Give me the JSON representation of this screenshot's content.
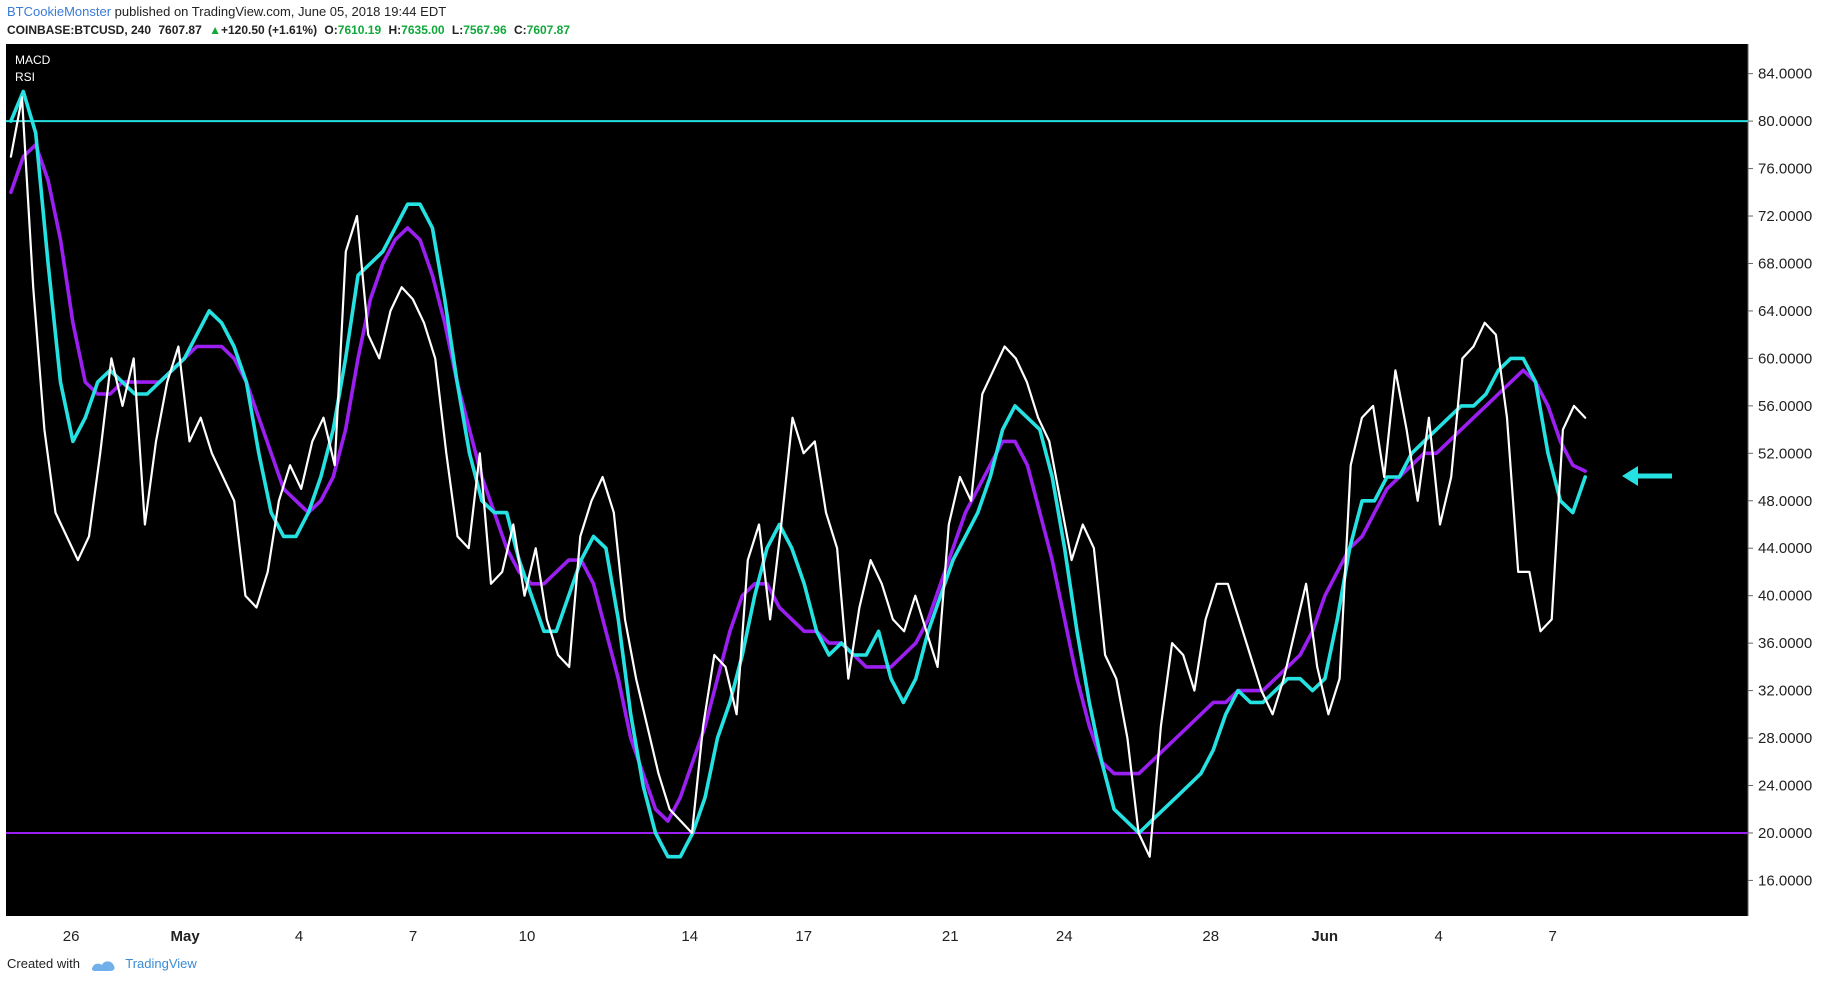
{
  "header": {
    "author": "BTCookieMonster",
    "published": "published on TradingView.com, June 05, 2018 19:44 EDT",
    "symbol": "COINBASE:BTCUSD, 240",
    "price": "7607.87",
    "change": "+120.50 (+1.61%)",
    "o_label": "O:",
    "o_value": "7610.19",
    "h_label": "H:",
    "h_value": "7635.00",
    "l_label": "L:",
    "l_value": "7567.96",
    "c_label": "C:",
    "c_value": "7607.87"
  },
  "footer": {
    "created_with": "Created with",
    "brand": "TradingView"
  },
  "colors": {
    "background": "#000000",
    "rsi": "#ffffff",
    "macd_fast": "#26e1e1",
    "macd_slow": "#9a1ff0",
    "upper_band": "#26e1e1",
    "lower_band": "#9a1ff0",
    "arrow": "#26e1e1"
  },
  "chart_data": {
    "type": "line",
    "legend": [
      "MACD",
      "RSI"
    ],
    "ylim": [
      13.0,
      86.5
    ],
    "y_ticks": [
      "84.0000",
      "80.0000",
      "76.0000",
      "72.0000",
      "68.0000",
      "64.0000",
      "60.0000",
      "56.0000",
      "52.0000",
      "48.0000",
      "44.0000",
      "40.0000",
      "36.0000",
      "32.0000",
      "28.0000",
      "24.0000",
      "20.0000",
      "16.0000"
    ],
    "x_ticks": [
      "26",
      "May",
      "4",
      "7",
      "10",
      "14",
      "17",
      "21",
      "24",
      "28",
      "Jun",
      "4",
      "7"
    ],
    "x_tick_pos": [
      2.5,
      9.5,
      16.5,
      23.5,
      30.5,
      40.5,
      47.5,
      56.5,
      63.5,
      72.5,
      79.5,
      86.5,
      93.5
    ],
    "xlim": [
      -1.5,
      105.5
    ],
    "hlines": [
      80,
      20
    ],
    "series": [
      {
        "name": "",
        "role": "rsi",
        "values": [
          77,
          82,
          66,
          54,
          47,
          45,
          43,
          45,
          52,
          60,
          56,
          60,
          46,
          53,
          58,
          61,
          53,
          55,
          52,
          50,
          48,
          40,
          39,
          42,
          48,
          51,
          49,
          53,
          55,
          51,
          69,
          72,
          62,
          60,
          64,
          66,
          65,
          63,
          60,
          52,
          45,
          44,
          52,
          41,
          42,
          46,
          40,
          44,
          38,
          35,
          34,
          45,
          48,
          50,
          47,
          38,
          33,
          29,
          25,
          22,
          21,
          20,
          29,
          35,
          34,
          30,
          43,
          46,
          38,
          46,
          55,
          52,
          53,
          47,
          44,
          33,
          39,
          43,
          41,
          38,
          37,
          40,
          37,
          34,
          46,
          50,
          48,
          57,
          59,
          61,
          60,
          58,
          55,
          53,
          48,
          43,
          46,
          44,
          35,
          33,
          28,
          20,
          18,
          29,
          36,
          35,
          32,
          38,
          41,
          41,
          38,
          35,
          32,
          30,
          33,
          37,
          41,
          34,
          30,
          33,
          51,
          55,
          56,
          50,
          59,
          54,
          48,
          55,
          46,
          50,
          60,
          61,
          63,
          62,
          55,
          42,
          42,
          37,
          38,
          54,
          56,
          55
        ]
      },
      {
        "name": "",
        "role": "macd_fast",
        "values": [
          80,
          82.5,
          79,
          68,
          58,
          53,
          55,
          58,
          59,
          58,
          57,
          57,
          58,
          59,
          60,
          62,
          64,
          63,
          61,
          58,
          52,
          47,
          45,
          45,
          47,
          50,
          54,
          60,
          67,
          68,
          69,
          71,
          73,
          73,
          71,
          65,
          58,
          52,
          48,
          47,
          47,
          43,
          40,
          37,
          37,
          40,
          43,
          45,
          44,
          38,
          30,
          24,
          20,
          18,
          18,
          20,
          23,
          28,
          31,
          35,
          40,
          44,
          46,
          44,
          41,
          37,
          35,
          36,
          35,
          35,
          37,
          33,
          31,
          33,
          37,
          40,
          43,
          45,
          47,
          50,
          54,
          56,
          55,
          54,
          50,
          44,
          37,
          31,
          26,
          22,
          21,
          20,
          21,
          22,
          23,
          24,
          25,
          27,
          30,
          32,
          31,
          31,
          32,
          33,
          33,
          32,
          33,
          38,
          44,
          48,
          48,
          50,
          50,
          52,
          53,
          54,
          55,
          56,
          56,
          57,
          59,
          60,
          60,
          58,
          52,
          48,
          47,
          50
        ]
      },
      {
        "name": "",
        "role": "macd_slow",
        "values": [
          74,
          77,
          78,
          75,
          70,
          63,
          58,
          57,
          57,
          58,
          58,
          58,
          58,
          59,
          60,
          61,
          61,
          61,
          60,
          58,
          55,
          52,
          49,
          48,
          47,
          48,
          50,
          54,
          60,
          65,
          68,
          70,
          71,
          70,
          67,
          63,
          58,
          54,
          50,
          47,
          44,
          42,
          41,
          41,
          42,
          43,
          43,
          41,
          37,
          33,
          28,
          25,
          22,
          21,
          23,
          26,
          29,
          33,
          37,
          40,
          41,
          41,
          39,
          38,
          37,
          37,
          36,
          36,
          35,
          34,
          34,
          34,
          35,
          36,
          38,
          41,
          44,
          47,
          49,
          51,
          53,
          53,
          51,
          47,
          43,
          38,
          33,
          29,
          26,
          25,
          25,
          25,
          26,
          27,
          28,
          29,
          30,
          31,
          31,
          32,
          32,
          32,
          33,
          34,
          35,
          37,
          40,
          42,
          44,
          45,
          47,
          49,
          50,
          51,
          52,
          52,
          53,
          54,
          55,
          56,
          57,
          58,
          59,
          58,
          56,
          53,
          51,
          50.5
        ]
      }
    ]
  }
}
